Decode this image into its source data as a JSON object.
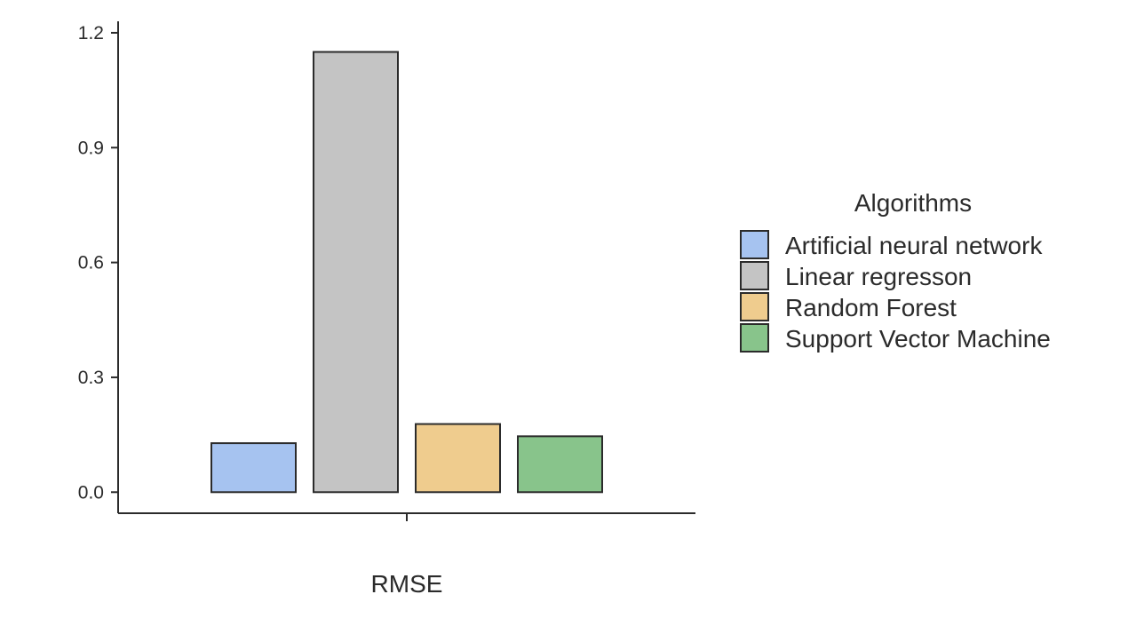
{
  "chart_data": {
    "type": "bar",
    "categories": [
      "RMSE"
    ],
    "series": [
      {
        "name": "Artificial neural network",
        "values": [
          0.128
        ],
        "color": "#a6c3f0"
      },
      {
        "name": "Linear regresson",
        "values": [
          1.15
        ],
        "color": "#c4c4c4"
      },
      {
        "name": "Random Forest",
        "values": [
          0.178
        ],
        "color": "#efcc8e"
      },
      {
        "name": "Support Vector Machine",
        "values": [
          0.146
        ],
        "color": "#88c48b"
      }
    ],
    "xlabel": "",
    "ylabel": "",
    "ylim": [
      -0.055,
      1.23
    ],
    "yticks": [
      0.0,
      0.3,
      0.6,
      0.9,
      1.2
    ],
    "ytick_labels": [
      "0.0",
      "0.3",
      "0.6",
      "0.9",
      "1.2"
    ],
    "x_tick_labels": [
      "RMSE"
    ],
    "legend": {
      "title": "Algorithms",
      "placement": "right"
    },
    "grid": false
  }
}
